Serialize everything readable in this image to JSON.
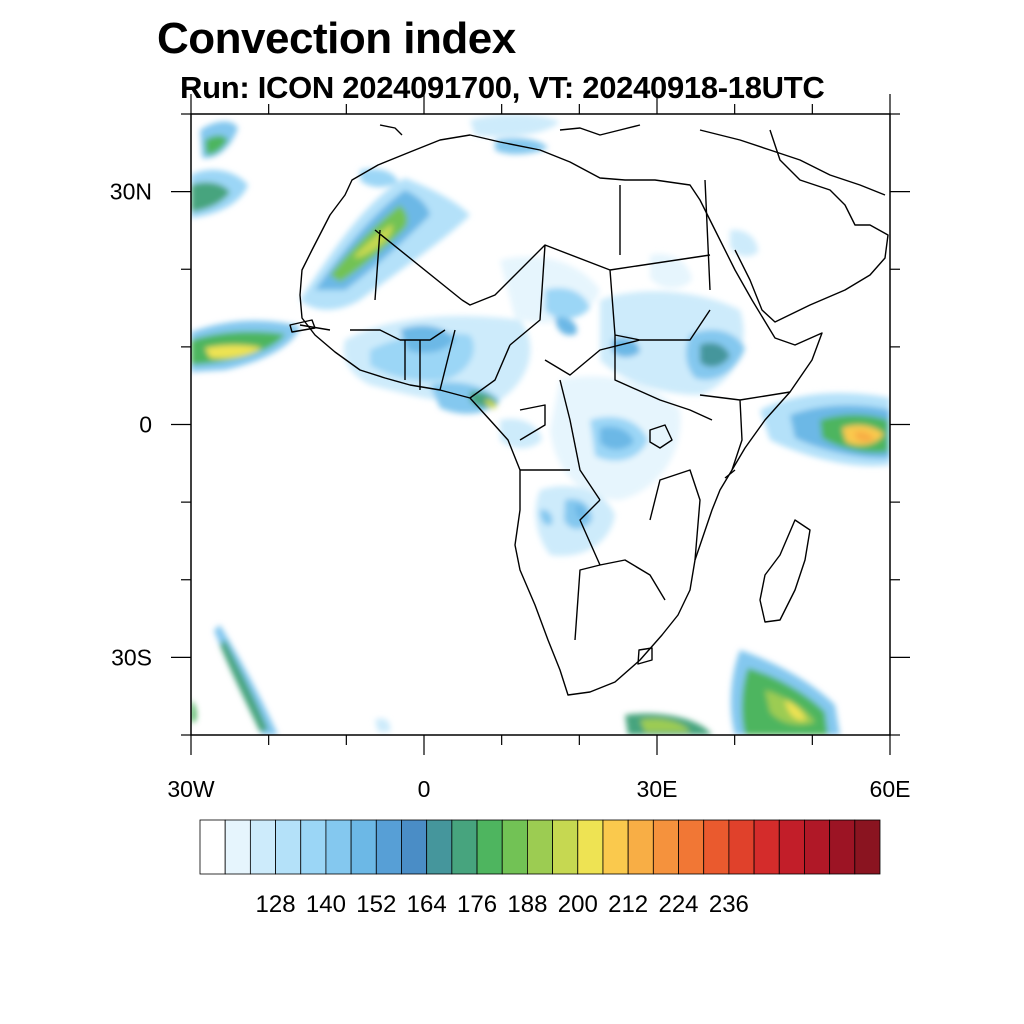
{
  "title": "Convection index",
  "subtitle": "Run: ICON 2024091700,  VT: 20240918-18UTC",
  "map": {
    "lon_range": [
      -30,
      60
    ],
    "lat_range": [
      -40,
      40
    ],
    "x_ticks": [
      {
        "lon": -30,
        "label": "30W"
      },
      {
        "lon": 0,
        "label": "0"
      },
      {
        "lon": 30,
        "label": "30E"
      },
      {
        "lon": 60,
        "label": "60E"
      }
    ],
    "y_ticks": [
      {
        "lat": 30,
        "label": "30N"
      },
      {
        "lat": 0,
        "label": "0"
      },
      {
        "lat": -30,
        "label": "30S"
      }
    ],
    "minor_lon_step": 10,
    "minor_lat_step": 10
  },
  "colorbar": {
    "colors": [
      "#ffffff",
      "#e6f5fd",
      "#cdebfb",
      "#b4e1f9",
      "#9bd6f6",
      "#84c8ef",
      "#6cb8e6",
      "#579fd6",
      "#4a8dc6",
      "#45969c",
      "#47a47e",
      "#4eb55f",
      "#72c255",
      "#9ccc52",
      "#c6d851",
      "#eee353",
      "#fac94d",
      "#f8ae45",
      "#f5923d",
      "#f17735",
      "#ea5a2e",
      "#e0412b",
      "#d42c2b",
      "#c21e29",
      "#b01827",
      "#9c1424",
      "#8a1420"
    ],
    "labels": [
      "128",
      "140",
      "152",
      "164",
      "176",
      "188",
      "200",
      "212",
      "224",
      "236"
    ],
    "label_bin_index": [
      2,
      4,
      6,
      8,
      10,
      12,
      14,
      16,
      18,
      20
    ]
  }
}
